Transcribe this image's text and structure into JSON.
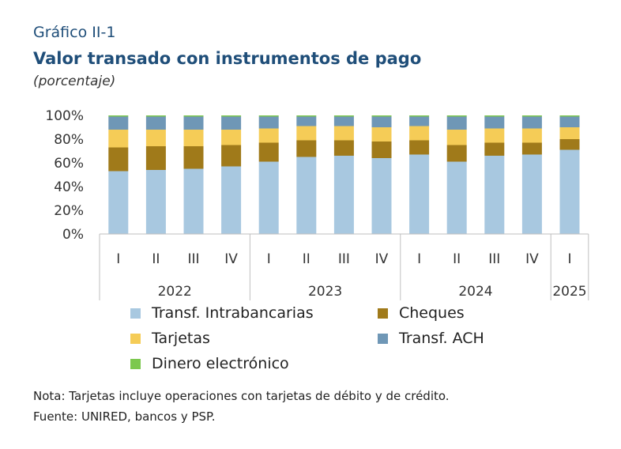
{
  "header": {
    "label": "Gráfico II-1",
    "title": "Valor transado con instrumentos de pago",
    "subtitle": "(porcentaje)"
  },
  "chart_data": {
    "type": "bar",
    "stacked": true,
    "categories": [
      "I",
      "II",
      "III",
      "IV",
      "I",
      "II",
      "III",
      "IV",
      "I",
      "II",
      "III",
      "IV",
      "I"
    ],
    "groups": [
      {
        "label": "2022",
        "count": 4
      },
      {
        "label": "2023",
        "count": 4
      },
      {
        "label": "2024",
        "count": 4
      },
      {
        "label": "2025",
        "count": 1
      }
    ],
    "ylim": [
      0,
      100
    ],
    "yticks": [
      "0%",
      "20%",
      "40%",
      "60%",
      "80%",
      "100%"
    ],
    "grid": false,
    "legend_position": "bottom",
    "series": [
      {
        "name": "Transf. Intrabancarias",
        "color": "#a8c8e0",
        "values": [
          53,
          54,
          55,
          57,
          61,
          65,
          66,
          64,
          67,
          61,
          66,
          67,
          71
        ]
      },
      {
        "name": "Cheques",
        "color": "#a07a1a",
        "values": [
          20,
          20,
          19,
          18,
          16,
          14,
          13,
          14,
          12,
          14,
          11,
          10,
          9
        ]
      },
      {
        "name": "Tarjetas",
        "color": "#f5cc57",
        "values": [
          15,
          14,
          14,
          13,
          12,
          12,
          12,
          12,
          12,
          13,
          12,
          12,
          10
        ]
      },
      {
        "name": "Transf. ACH",
        "color": "#6f97b6",
        "values": [
          11,
          11,
          11,
          11,
          10,
          8,
          8,
          9,
          8,
          11,
          10,
          10,
          9
        ]
      },
      {
        "name": "Dinero electrónico",
        "color": "#7cc84e",
        "values": [
          1,
          1,
          1,
          1,
          1,
          1,
          1,
          1,
          1,
          1,
          1,
          1,
          1
        ]
      }
    ]
  },
  "notes": {
    "nota": "Nota: Tarjetas incluye operaciones con tarjetas de débito y de crédito.",
    "fuente": "Fuente: UNIRED, bancos y PSP."
  }
}
